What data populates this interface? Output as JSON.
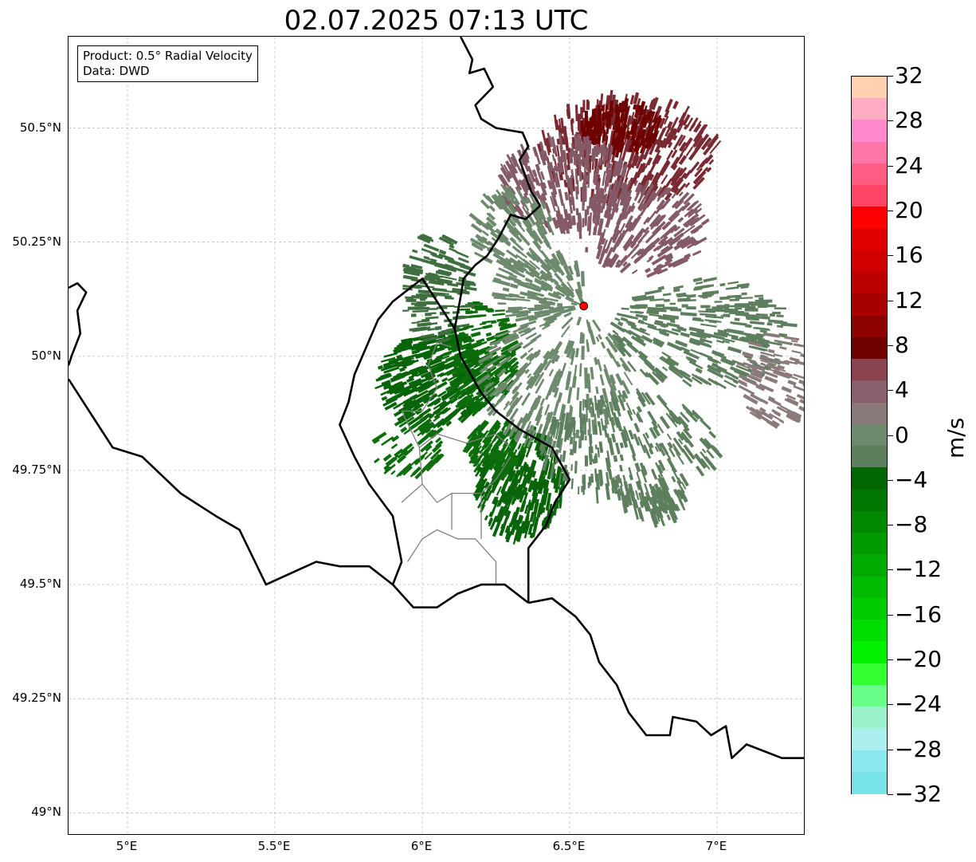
{
  "title": "02.07.2025 07:13 UTC",
  "info_box": {
    "product": "Product: 0.5° Radial Velocity",
    "data": "Data: DWD"
  },
  "map": {
    "lon_range": [
      4.8,
      7.3
    ],
    "lat_range": [
      48.95,
      50.7
    ],
    "lat_ticks": [
      {
        "value": 50.5,
        "label": "50.5°N"
      },
      {
        "value": 50.25,
        "label": "50.25°N"
      },
      {
        "value": 50.0,
        "label": "50°N"
      },
      {
        "value": 49.75,
        "label": "49.75°N"
      },
      {
        "value": 49.5,
        "label": "49.5°N"
      },
      {
        "value": 49.25,
        "label": "49.25°N"
      },
      {
        "value": 49.0,
        "label": "49°N"
      }
    ],
    "lon_ticks": [
      {
        "value": 5.0,
        "label": "5°E"
      },
      {
        "value": 5.5,
        "label": "5.5°E"
      },
      {
        "value": 6.0,
        "label": "6°E"
      },
      {
        "value": 6.5,
        "label": "6.5°E"
      },
      {
        "value": 7.0,
        "label": "7°E"
      }
    ],
    "gridlines": true,
    "radar_site": {
      "lon": 6.548,
      "lat": 50.11,
      "color": "#ff0000"
    },
    "country_border_color": "#000000",
    "admin_border_color": "#808080",
    "national_borders": [
      [
        [
          6.13,
          50.7
        ],
        [
          6.17,
          50.65
        ],
        [
          6.16,
          50.62
        ],
        [
          6.21,
          50.63
        ],
        [
          6.24,
          50.59
        ],
        [
          6.18,
          50.55
        ],
        [
          6.2,
          50.52
        ],
        [
          6.25,
          50.5
        ],
        [
          6.34,
          50.49
        ],
        [
          6.36,
          50.46
        ],
        [
          6.33,
          50.43
        ],
        [
          6.37,
          50.36
        ],
        [
          6.4,
          50.33
        ],
        [
          6.35,
          50.3
        ],
        [
          6.3,
          50.31
        ],
        [
          6.26,
          50.26
        ],
        [
          6.22,
          50.22
        ],
        [
          6.18,
          50.2
        ],
        [
          6.14,
          50.17
        ],
        [
          6.13,
          50.13
        ],
        [
          6.11,
          50.06
        ],
        [
          6.13,
          50.0
        ],
        [
          6.2,
          49.92
        ],
        [
          6.25,
          49.88
        ],
        [
          6.33,
          49.84
        ],
        [
          6.44,
          49.8
        ],
        [
          6.5,
          49.73
        ],
        [
          6.45,
          49.68
        ],
        [
          6.42,
          49.63
        ],
        [
          6.36,
          49.58
        ],
        [
          6.36,
          49.55
        ],
        [
          6.36,
          49.46
        ]
      ],
      [
        [
          6.36,
          49.46
        ],
        [
          6.44,
          49.47
        ],
        [
          6.52,
          49.43
        ],
        [
          6.57,
          49.39
        ],
        [
          6.6,
          49.33
        ],
        [
          6.66,
          49.28
        ],
        [
          6.7,
          49.22
        ],
        [
          6.76,
          49.17
        ],
        [
          6.84,
          49.17
        ],
        [
          6.85,
          49.21
        ],
        [
          6.93,
          49.2
        ],
        [
          6.98,
          49.17
        ],
        [
          7.03,
          49.19
        ],
        [
          7.05,
          49.12
        ],
        [
          7.1,
          49.15
        ],
        [
          7.22,
          49.12
        ],
        [
          7.3,
          49.12
        ]
      ],
      [
        [
          6.36,
          49.46
        ],
        [
          6.28,
          49.5
        ],
        [
          6.2,
          49.5
        ],
        [
          6.12,
          49.48
        ],
        [
          6.05,
          49.45
        ],
        [
          5.97,
          49.45
        ],
        [
          5.9,
          49.5
        ],
        [
          5.82,
          49.54
        ],
        [
          5.72,
          49.54
        ],
        [
          5.64,
          49.55
        ],
        [
          5.47,
          49.5
        ],
        [
          5.38,
          49.62
        ],
        [
          5.3,
          49.65
        ],
        [
          5.18,
          49.7
        ],
        [
          5.05,
          49.78
        ],
        [
          4.95,
          49.8
        ],
        [
          4.85,
          49.9
        ],
        [
          4.8,
          49.95
        ]
      ],
      [
        [
          6.11,
          50.06
        ],
        [
          6.0,
          50.17
        ],
        [
          5.96,
          50.15
        ],
        [
          5.9,
          50.12
        ],
        [
          5.85,
          50.08
        ],
        [
          5.77,
          49.96
        ],
        [
          5.75,
          49.9
        ],
        [
          5.72,
          49.85
        ],
        [
          5.77,
          49.78
        ],
        [
          5.82,
          49.72
        ],
        [
          5.9,
          49.65
        ],
        [
          5.93,
          49.55
        ],
        [
          5.9,
          49.5
        ]
      ],
      [
        [
          4.8,
          50.15
        ],
        [
          4.83,
          50.16
        ],
        [
          4.86,
          50.14
        ],
        [
          4.83,
          50.1
        ],
        [
          4.84,
          50.05
        ],
        [
          4.81,
          50.0
        ],
        [
          4.8,
          49.98
        ]
      ]
    ],
    "admin_borders": [
      [
        [
          5.93,
          49.88
        ],
        [
          6.0,
          49.88
        ],
        [
          6.05,
          49.93
        ],
        [
          6.02,
          49.98
        ],
        [
          6.05,
          50.03
        ],
        [
          6.1,
          50.02
        ]
      ],
      [
        [
          5.93,
          49.88
        ],
        [
          5.99,
          49.8
        ],
        [
          6.05,
          49.83
        ],
        [
          6.15,
          49.81
        ],
        [
          6.25,
          49.83
        ],
        [
          6.3,
          49.8
        ]
      ],
      [
        [
          5.99,
          49.8
        ],
        [
          6.0,
          49.72
        ],
        [
          6.05,
          49.68
        ],
        [
          6.1,
          49.7
        ],
        [
          6.2,
          49.7
        ],
        [
          6.25,
          49.73
        ],
        [
          6.3,
          49.78
        ]
      ],
      [
        [
          5.93,
          49.68
        ],
        [
          6.0,
          49.72
        ]
      ],
      [
        [
          5.95,
          49.55
        ],
        [
          6.0,
          49.6
        ],
        [
          6.05,
          49.62
        ],
        [
          6.12,
          49.6
        ],
        [
          6.18,
          49.6
        ],
        [
          6.25,
          49.55
        ],
        [
          6.25,
          49.5
        ]
      ],
      [
        [
          6.1,
          49.7
        ],
        [
          6.1,
          49.62
        ]
      ],
      [
        [
          6.2,
          49.7
        ],
        [
          6.2,
          49.6
        ]
      ]
    ],
    "velocity_clusters": [
      {
        "lon": 6.7,
        "lat": 50.45,
        "rx": 0.3,
        "ry": 0.12,
        "color": "#7a2a32",
        "n": 400
      },
      {
        "lon": 6.68,
        "lat": 50.5,
        "rx": 0.14,
        "ry": 0.05,
        "color": "#6e0000",
        "n": 160
      },
      {
        "lon": 6.48,
        "lat": 50.38,
        "rx": 0.22,
        "ry": 0.1,
        "color": "#835a66",
        "n": 260
      },
      {
        "lon": 6.75,
        "lat": 50.28,
        "rx": 0.22,
        "ry": 0.1,
        "color": "#835a66",
        "n": 220
      },
      {
        "lon": 6.3,
        "lat": 50.28,
        "rx": 0.14,
        "ry": 0.09,
        "color": "#6d8a6d",
        "n": 140
      },
      {
        "lon": 6.95,
        "lat": 50.05,
        "rx": 0.3,
        "ry": 0.12,
        "color": "#5d7f5d",
        "n": 320
      },
      {
        "lon": 7.2,
        "lat": 49.95,
        "rx": 0.12,
        "ry": 0.1,
        "color": "#8a7a7a",
        "n": 100
      },
      {
        "lon": 6.05,
        "lat": 49.95,
        "rx": 0.2,
        "ry": 0.1,
        "color": "#086408",
        "n": 340
      },
      {
        "lon": 6.2,
        "lat": 50.0,
        "rx": 0.12,
        "ry": 0.12,
        "color": "#0b6e0b",
        "n": 200
      },
      {
        "lon": 6.33,
        "lat": 49.72,
        "rx": 0.15,
        "ry": 0.12,
        "color": "#086408",
        "n": 300
      },
      {
        "lon": 6.25,
        "lat": 49.8,
        "rx": 0.1,
        "ry": 0.06,
        "color": "#0b6e0b",
        "n": 120
      },
      {
        "lon": 6.45,
        "lat": 49.95,
        "rx": 0.25,
        "ry": 0.15,
        "color": "#6d8a6d",
        "n": 260
      },
      {
        "lon": 6.7,
        "lat": 49.8,
        "rx": 0.3,
        "ry": 0.12,
        "color": "#5d7f5d",
        "n": 260
      },
      {
        "lon": 6.05,
        "lat": 50.15,
        "rx": 0.12,
        "ry": 0.12,
        "color": "#3f6e3f",
        "n": 140
      },
      {
        "lon": 6.4,
        "lat": 50.15,
        "rx": 0.15,
        "ry": 0.08,
        "color": "#6d8a6d",
        "n": 160
      },
      {
        "lon": 6.78,
        "lat": 49.68,
        "rx": 0.12,
        "ry": 0.04,
        "color": "#5d7f5d",
        "n": 70
      },
      {
        "lon": 5.95,
        "lat": 49.8,
        "rx": 0.12,
        "ry": 0.06,
        "color": "#0b6e0b",
        "n": 60
      }
    ]
  },
  "colorbar": {
    "unit": "m/s",
    "vmin": -32,
    "vmax": 32,
    "tick_labels": [
      "32",
      "28",
      "24",
      "20",
      "16",
      "12",
      "8",
      "4",
      "0",
      "−4",
      "−8",
      "−12",
      "−16",
      "−20",
      "−24",
      "−28",
      "−32"
    ],
    "tick_values": [
      32,
      28,
      24,
      20,
      16,
      12,
      8,
      4,
      0,
      -4,
      -8,
      -12,
      -16,
      -20,
      -24,
      -28,
      -32
    ],
    "colors_top_to_bottom": [
      "#ffd1b0",
      "#ffabc4",
      "#ff88cc",
      "#ff75a8",
      "#ff5c84",
      "#ff4466",
      "#ff0000",
      "#e00000",
      "#d00000",
      "#bb0000",
      "#a80000",
      "#8c0000",
      "#6e0000",
      "#8a4450",
      "#895f6d",
      "#887878",
      "#6d8a6d",
      "#5d7f5d",
      "#006600",
      "#007700",
      "#008800",
      "#009900",
      "#00aa00",
      "#00bb00",
      "#00cc00",
      "#00dd00",
      "#00f000",
      "#33ff33",
      "#66ff88",
      "#99f2cc",
      "#aaeeee",
      "#88e8ee",
      "#77e2e8"
    ]
  }
}
